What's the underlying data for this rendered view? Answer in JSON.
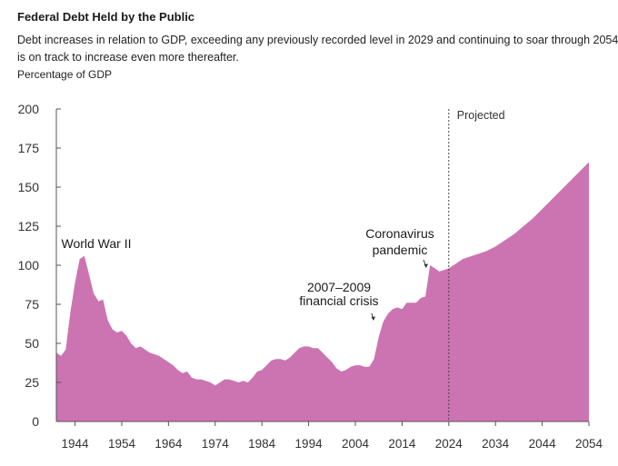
{
  "header": {
    "title": "Federal Debt Held by the Public",
    "subtitle": "Debt increases in relation to GDP, exceeding any previously recorded level in 2029 and continuing to soar through 2054. It is on track to increase even more thereafter.",
    "unit_label": "Percentage of GDP"
  },
  "chart_data": {
    "type": "area",
    "title": "Federal Debt Held by the Public",
    "xlabel": "",
    "ylabel": "Percentage of GDP",
    "xlim": [
      1940,
      2054
    ],
    "ylim": [
      0,
      200
    ],
    "x_ticks": [
      1944,
      1954,
      1964,
      1974,
      1984,
      1994,
      2004,
      2014,
      2024,
      2034,
      2044,
      2054
    ],
    "y_ticks": [
      0,
      25,
      50,
      75,
      100,
      125,
      150,
      175,
      200
    ],
    "fill_color": "#cc74b2",
    "projection_start": 2024,
    "projection_label": "Projected",
    "annotations": [
      {
        "id": "ww2",
        "text": [
          "World War II"
        ],
        "x": 1946,
        "y": 106
      },
      {
        "id": "financial",
        "text": [
          "2007–2009",
          "financial crisis"
        ],
        "x": 2009,
        "y": 52
      },
      {
        "id": "covid",
        "text": [
          "Coronavirus",
          "pandemic"
        ],
        "x": 2020,
        "y": 99
      }
    ],
    "series": [
      {
        "x": [
          1940,
          1941,
          1942,
          1943,
          1944,
          1945,
          1946,
          1947,
          1948,
          1949,
          1950,
          1951,
          1952,
          1953,
          1954,
          1955,
          1956,
          1957,
          1958,
          1959,
          1960,
          1961,
          1962,
          1963,
          1964,
          1965,
          1966,
          1967,
          1968,
          1969,
          1970,
          1971,
          1972,
          1973,
          1974,
          1975,
          1976,
          1977,
          1978,
          1979,
          1980,
          1981,
          1982,
          1983,
          1984,
          1985,
          1986,
          1987,
          1988,
          1989,
          1990,
          1991,
          1992,
          1993,
          1994,
          1995,
          1996,
          1997,
          1998,
          1999,
          2000,
          2001,
          2002,
          2003,
          2004,
          2005,
          2006,
          2007,
          2008,
          2009,
          2010,
          2011,
          2012,
          2013,
          2014,
          2015,
          2016,
          2017,
          2018,
          2019,
          2020,
          2021,
          2022,
          2023,
          2024,
          2025,
          2026,
          2027,
          2028,
          2029,
          2030,
          2032,
          2034,
          2036,
          2038,
          2040,
          2042,
          2044,
          2046,
          2048,
          2050,
          2052,
          2054
        ],
        "values": [
          44,
          42,
          46,
          70,
          89,
          104,
          106,
          94,
          82,
          77,
          78,
          65,
          59,
          57,
          58,
          55,
          50,
          47,
          48,
          46,
          44,
          43,
          42,
          40,
          38,
          36,
          33,
          31,
          32,
          28,
          27,
          27,
          26,
          25,
          23,
          25,
          27,
          27,
          26,
          25,
          26,
          25,
          28,
          32,
          33,
          36,
          39,
          40,
          40,
          39,
          41,
          44,
          47,
          48,
          48,
          47,
          47,
          44,
          41,
          38,
          34,
          32,
          33,
          35,
          36,
          36,
          35,
          35,
          40,
          54,
          64,
          69,
          72,
          73,
          72,
          76,
          76,
          76,
          79,
          80,
          100,
          98,
          96,
          97,
          98,
          100,
          102,
          104,
          105,
          106,
          107,
          109,
          112,
          116,
          120,
          125,
          130,
          136,
          142,
          148,
          154,
          160,
          166
        ]
      }
    ]
  }
}
